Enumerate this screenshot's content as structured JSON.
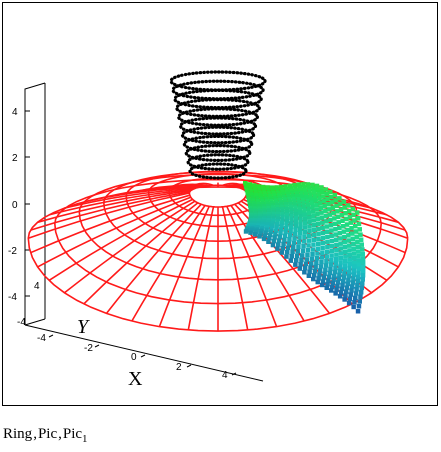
{
  "plot": {
    "z_ticks": [
      "4",
      "2",
      "0",
      "-2",
      "-4"
    ],
    "x_ticks": [
      "-4",
      "-2",
      "0",
      "2",
      "4"
    ],
    "y_ticks": [
      "4",
      "-4"
    ],
    "x_axis_label": "X",
    "y_axis_label": "Y",
    "series": [
      {
        "name": "Ring",
        "color": "#000000",
        "style": "black dotted rings"
      },
      {
        "name": "Pic",
        "color": "#ff0000",
        "style": "red wireframe surface"
      },
      {
        "name": "Pic1",
        "color": "#33cc66",
        "style": "green-to-cyan point surface"
      }
    ]
  },
  "expression": {
    "part1": "Ring",
    "part2": "Pic",
    "part3_base": "Pic",
    "part3_sub": "1",
    "separator": ","
  }
}
